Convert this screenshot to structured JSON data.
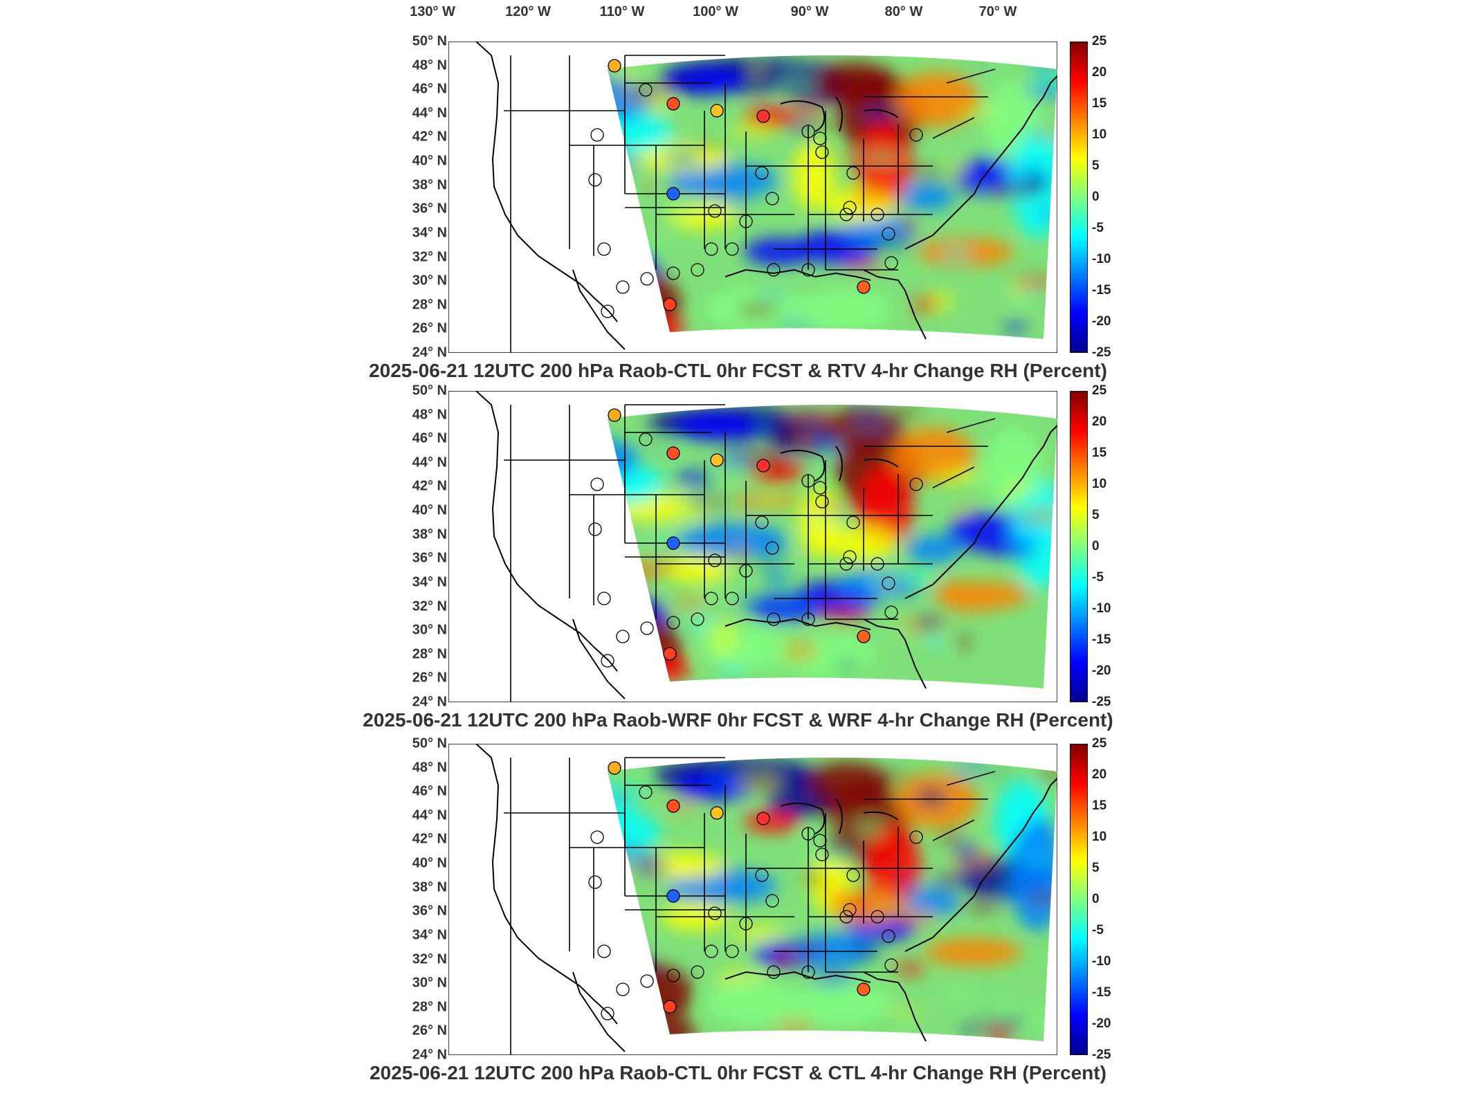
{
  "lon_labels": [
    "130° W",
    "120° W",
    "110° W",
    "100° W",
    "90° W",
    "80° W",
    "70° W"
  ],
  "lat_labels": [
    "50° N",
    "48° N",
    "46° N",
    "44° N",
    "42° N",
    "40° N",
    "38° N",
    "36° N",
    "34° N",
    "32° N",
    "30° N",
    "28° N",
    "26° N",
    "24° N"
  ],
  "colorbar": {
    "ticks": [
      "25",
      "20",
      "15",
      "10",
      "5",
      "0",
      "-5",
      "-10",
      "-15",
      "-20",
      "-25"
    ],
    "colors": [
      "#00008f",
      "#0000ff",
      "#0080ff",
      "#00ffff",
      "#80ff80",
      "#ffff00",
      "#ff8000",
      "#ff0000",
      "#800000"
    ]
  },
  "panels": [
    {
      "title": "2025-06-21 12UTC 200 hPa Raob-CTL 0hr FCST & RTV 4-hr Change RH (Percent)"
    },
    {
      "title": "2025-06-21 12UTC 200 hPa Raob-WRF 0hr FCST & WRF 4-hr Change RH (Percent)"
    },
    {
      "title": "2025-06-21 12UTC 200 hPa Raob-CTL 0hr FCST & CTL 4-hr Change RH (Percent)"
    }
  ]
}
